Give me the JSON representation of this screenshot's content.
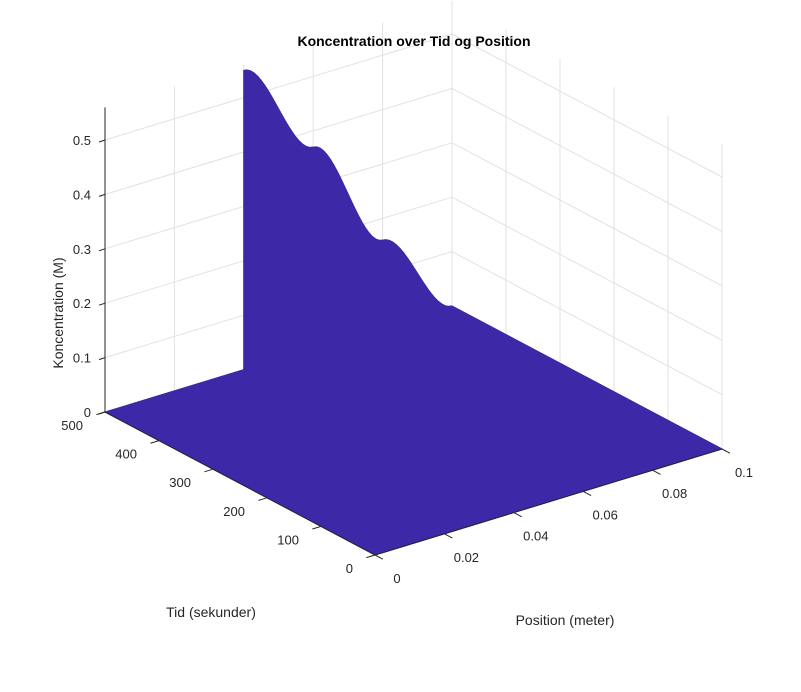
{
  "chart_data": {
    "type": "surface",
    "title": "Koncentration over Tid og Position",
    "xlabel": "Position (meter)",
    "ylabel": "Tid (sekunder)",
    "zlabel": "Koncentration (M)",
    "xlim": [
      0,
      0.1
    ],
    "ylim": [
      0,
      500
    ],
    "zlim": [
      0,
      0.55
    ],
    "xticks": [
      0,
      0.02,
      0.04,
      0.06,
      0.08,
      0.1
    ],
    "xtick_labels": [
      "0",
      "0.02",
      "0.04",
      "0.06",
      "0.08",
      "0.1"
    ],
    "yticks": [
      0,
      100,
      200,
      300,
      400,
      500
    ],
    "ytick_labels": [
      "0",
      "100",
      "200",
      "300",
      "400",
      "500"
    ],
    "zticks": [
      0,
      0.1,
      0.2,
      0.3,
      0.4,
      0.5
    ],
    "ztick_labels": [
      "0",
      "0.1",
      "0.2",
      "0.3",
      "0.4",
      "0.5"
    ],
    "grid": true,
    "surface_color": "#3d28a8",
    "surface": {
      "description_values": "Concentration is ~0 everywhere except at t = 500 s where it rises with position",
      "baseline_concentration": 0,
      "profile_at_t_max": {
        "t": 500,
        "x": [
          0,
          0.02,
          0.04,
          0.06,
          0.08,
          0.1
        ],
        "c": [
          0.0,
          0.0,
          0.55,
          0.37,
          0.16,
          0.0
        ]
      }
    }
  }
}
